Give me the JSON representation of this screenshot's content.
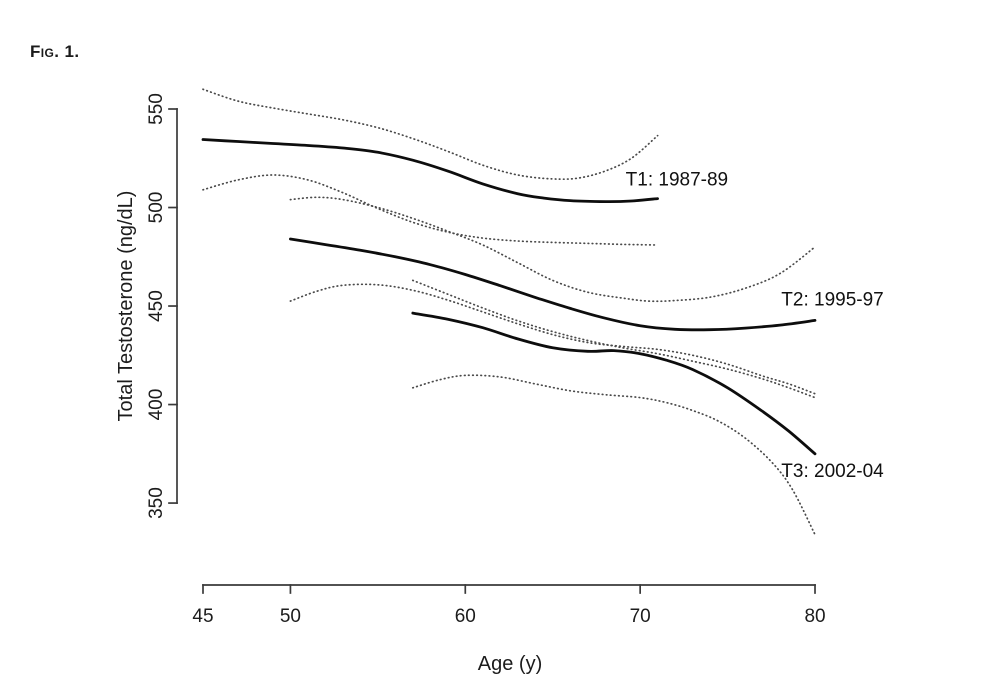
{
  "figure_label": "Fig. 1.",
  "chart_data": {
    "type": "line",
    "xlabel": "Age (y)",
    "ylabel": "Total Testosterone (ng/dL)",
    "unit": "ng/dL",
    "xlim": [
      45,
      80
    ],
    "ylim": [
      333,
      561
    ],
    "x_ticks": [
      45,
      50,
      60,
      70,
      80
    ],
    "y_ticks": [
      350,
      400,
      450,
      500,
      550
    ],
    "grid": false,
    "legend_position": "inline-labels",
    "line_colors": {
      "mean": "#0d0d0d",
      "band": "#4a4a4a"
    },
    "series": [
      {
        "name": "T1: 1987-89",
        "label_at": {
          "age": 72.1,
          "value": 514.5
        },
        "mean": [
          [
            45,
            534.5
          ],
          [
            47,
            533.5
          ],
          [
            49,
            532.5
          ],
          [
            51,
            531.5
          ],
          [
            53,
            530.2
          ],
          [
            55,
            528
          ],
          [
            57,
            524
          ],
          [
            59,
            518.5
          ],
          [
            61,
            512
          ],
          [
            63,
            507
          ],
          [
            64.5,
            504.8
          ],
          [
            66,
            503.5
          ],
          [
            68,
            503
          ],
          [
            69.5,
            503.3
          ],
          [
            71,
            504.5
          ]
        ],
        "upper_band": [
          [
            45,
            560
          ],
          [
            47,
            554
          ],
          [
            49,
            550.5
          ],
          [
            51,
            547.5
          ],
          [
            53,
            544.5
          ],
          [
            55,
            540.5
          ],
          [
            57,
            535
          ],
          [
            59,
            528.5
          ],
          [
            61,
            521.5
          ],
          [
            63,
            516.5
          ],
          [
            65,
            514.5
          ],
          [
            66.5,
            515
          ],
          [
            68,
            518.5
          ],
          [
            69.5,
            525
          ],
          [
            71,
            536.5
          ]
        ],
        "lower_band": [
          [
            45,
            509
          ],
          [
            47,
            514
          ],
          [
            49,
            516.5
          ],
          [
            51,
            514
          ],
          [
            53,
            507.5
          ],
          [
            55,
            499.5
          ],
          [
            57,
            492.5
          ],
          [
            59,
            487.5
          ],
          [
            61,
            484.5
          ],
          [
            63,
            483
          ],
          [
            65,
            482.3
          ],
          [
            67,
            481.8
          ],
          [
            69,
            481.3
          ],
          [
            71,
            481
          ]
        ]
      },
      {
        "name": "T2: 1995-97",
        "label_at": {
          "age": 81.0,
          "value": 453.5
        },
        "mean": [
          [
            50,
            484
          ],
          [
            52,
            481.2
          ],
          [
            54,
            478.3
          ],
          [
            56,
            475
          ],
          [
            58,
            471
          ],
          [
            60,
            466
          ],
          [
            62,
            460.3
          ],
          [
            64,
            454.4
          ],
          [
            66,
            448.8
          ],
          [
            68,
            443.8
          ],
          [
            70,
            440
          ],
          [
            72,
            438.2
          ],
          [
            74,
            438
          ],
          [
            76,
            438.8
          ],
          [
            78,
            440.3
          ],
          [
            80,
            442.7
          ]
        ],
        "upper_band": [
          [
            50,
            504
          ],
          [
            51.5,
            505.2
          ],
          [
            53,
            504
          ],
          [
            55,
            500
          ],
          [
            57,
            494.5
          ],
          [
            59,
            488
          ],
          [
            61,
            481
          ],
          [
            63,
            472
          ],
          [
            65,
            463
          ],
          [
            67,
            457
          ],
          [
            69,
            454
          ],
          [
            70.5,
            452.5
          ],
          [
            72,
            452.8
          ],
          [
            74,
            454.5
          ],
          [
            76,
            459
          ],
          [
            78,
            466.5
          ],
          [
            80,
            480
          ]
        ],
        "lower_band": [
          [
            50,
            452.5
          ],
          [
            51.5,
            457.5
          ],
          [
            53,
            460.5
          ],
          [
            55,
            460.8
          ],
          [
            57,
            458
          ],
          [
            59,
            453
          ],
          [
            61,
            447
          ],
          [
            63,
            441
          ],
          [
            65,
            435.5
          ],
          [
            67,
            431.5
          ],
          [
            69,
            429.5
          ],
          [
            71,
            428
          ],
          [
            73,
            425
          ],
          [
            75,
            420.5
          ],
          [
            77,
            414.5
          ],
          [
            78.5,
            410.5
          ],
          [
            80,
            405.5
          ]
        ]
      },
      {
        "name": "T3: 2002-04",
        "label_at": {
          "age": 81.0,
          "value": 366.5
        },
        "mean": [
          [
            57,
            446.4
          ],
          [
            59,
            443.3
          ],
          [
            61,
            439
          ],
          [
            63,
            433.3
          ],
          [
            65,
            428.8
          ],
          [
            67,
            427
          ],
          [
            68.5,
            427.4
          ],
          [
            70,
            425.8
          ],
          [
            71.5,
            422.5
          ],
          [
            73,
            417.8
          ],
          [
            75,
            408.5
          ],
          [
            77,
            396.5
          ],
          [
            78.5,
            386.5
          ],
          [
            80,
            375
          ]
        ],
        "upper_band": [
          [
            57,
            463
          ],
          [
            59,
            456
          ],
          [
            61,
            449
          ],
          [
            63,
            442.5
          ],
          [
            65,
            437
          ],
          [
            67,
            432.5
          ],
          [
            69,
            428.8
          ],
          [
            71,
            425.8
          ],
          [
            73,
            422
          ],
          [
            75,
            418
          ],
          [
            77,
            413
          ],
          [
            78.5,
            408.5
          ],
          [
            80,
            403.5
          ]
        ],
        "lower_band": [
          [
            57,
            408.5
          ],
          [
            58.5,
            412.5
          ],
          [
            60,
            414.8
          ],
          [
            62,
            414
          ],
          [
            64,
            410.5
          ],
          [
            66,
            407
          ],
          [
            68,
            405
          ],
          [
            70,
            403.5
          ],
          [
            71.5,
            401
          ],
          [
            73,
            397
          ],
          [
            74.5,
            391.5
          ],
          [
            76,
            383
          ],
          [
            77.5,
            371
          ],
          [
            78.7,
            357
          ],
          [
            80,
            334
          ]
        ]
      }
    ]
  }
}
